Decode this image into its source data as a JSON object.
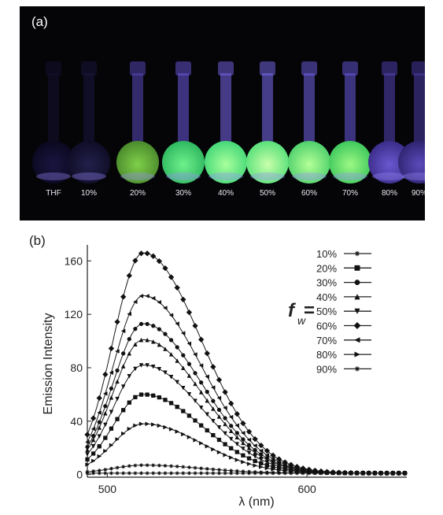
{
  "panel_a": {
    "label": "(a)",
    "vials": [
      {
        "label": "THF",
        "body_color": "#0b0820",
        "glow": "#1a1540",
        "neck": "#141030"
      },
      {
        "label": "10%",
        "body_color": "#0f0c26",
        "glow": "#22204a",
        "neck": "#1a1640"
      },
      {
        "label": "20%",
        "body_color": "#4a8a2c",
        "glow": "#7fd04a",
        "neck": "#5a48c0"
      },
      {
        "label": "30%",
        "body_color": "#2fb860",
        "glow": "#6ff08c",
        "neck": "#6a58e0"
      },
      {
        "label": "40%",
        "body_color": "#45d878",
        "glow": "#a8ff9c",
        "neck": "#7a66ee"
      },
      {
        "label": "50%",
        "body_color": "#58e07a",
        "glow": "#c8ffaa",
        "neck": "#7a6cf0"
      },
      {
        "label": "60%",
        "body_color": "#4ed06c",
        "glow": "#b4ff96",
        "neck": "#7262e8"
      },
      {
        "label": "70%",
        "body_color": "#3ec85c",
        "glow": "#9cf884",
        "neck": "#6a5ae0"
      },
      {
        "label": "80%",
        "body_color": "#3a2c88",
        "glow": "#6a58d0",
        "neck": "#5444b8"
      },
      {
        "label": "90%",
        "body_color": "#2e2470",
        "glow": "#5a4aba",
        "neck": "#4a3caa"
      }
    ]
  },
  "panel_b": {
    "label": "(b)",
    "legend_symbol": "f",
    "legend_subscript": "w",
    "legend_equals": "="
  },
  "chart_data": {
    "type": "line",
    "xlabel": "λ (nm)",
    "ylabel": "Emission Intensity",
    "xlim": [
      490,
      650
    ],
    "ylim": [
      -2,
      172
    ],
    "xticks": [
      500,
      600
    ],
    "yticks": [
      0,
      40,
      80,
      120,
      160
    ],
    "grid": false,
    "legend_position": "top-right",
    "peak_wavelength": 518,
    "series": [
      {
        "name": "10%",
        "marker": "star",
        "peak": 1
      },
      {
        "name": "20%",
        "marker": "square",
        "peak": 60
      },
      {
        "name": "30%",
        "marker": "circle",
        "peak": 113
      },
      {
        "name": "40%",
        "marker": "triangle-up",
        "peak": 101
      },
      {
        "name": "50%",
        "marker": "triangle-down",
        "peak": 82
      },
      {
        "name": "60%",
        "marker": "diamond",
        "peak": 166
      },
      {
        "name": "70%",
        "marker": "triangle-left",
        "peak": 134
      },
      {
        "name": "80%",
        "marker": "triangle-right",
        "peak": 38
      },
      {
        "name": "90%",
        "marker": "star",
        "peak": 7
      }
    ]
  }
}
